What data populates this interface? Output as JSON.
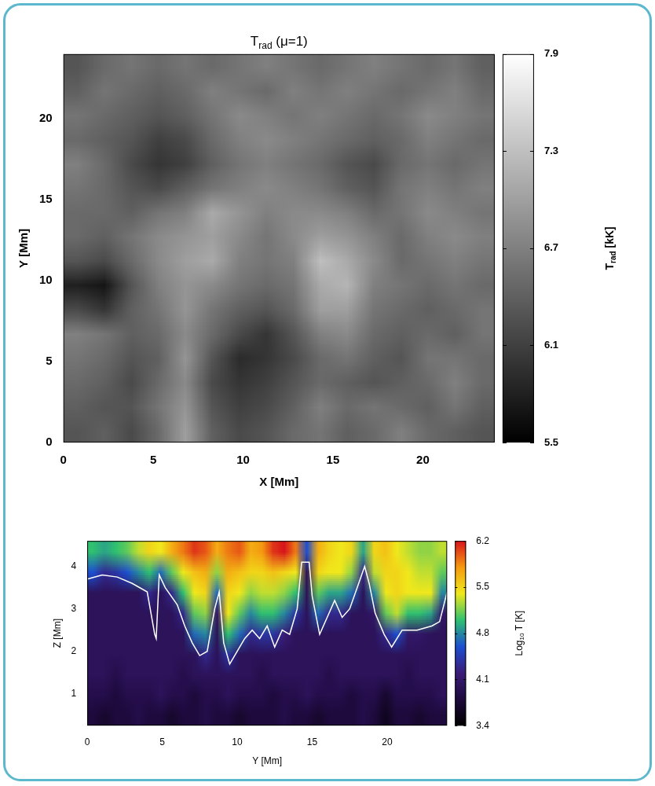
{
  "chart_data": [
    {
      "type": "heatmap",
      "title": {
        "text": "T",
        "subscript": "rad",
        "after": " (μ=1)"
      },
      "x_label": "X [Mm]",
      "y_label": "Y [Mm]",
      "xlim": [
        0,
        24
      ],
      "xticks": [
        0,
        5,
        10,
        15,
        20
      ],
      "ylim": [
        0,
        24
      ],
      "yticks": [
        0,
        5,
        10,
        15,
        20
      ],
      "cells": [
        [
          6.3,
          6.4,
          6.2,
          6.5,
          7.0,
          6.4,
          6.2,
          6.3,
          6.5,
          6.6,
          6.4,
          6.5,
          6.7,
          6.5,
          6.4,
          6.3
        ],
        [
          6.4,
          6.3,
          6.3,
          6.6,
          6.9,
          6.3,
          6.1,
          6.2,
          6.4,
          6.7,
          6.5,
          6.6,
          6.5,
          6.4,
          6.6,
          6.4
        ],
        [
          6.5,
          6.4,
          6.2,
          6.5,
          6.8,
          6.2,
          6.0,
          6.1,
          6.3,
          6.5,
          6.4,
          6.3,
          6.4,
          6.5,
          6.7,
          6.5
        ],
        [
          6.6,
          6.5,
          6.3,
          6.4,
          6.9,
          6.3,
          5.9,
          6.0,
          6.2,
          6.5,
          6.6,
          6.4,
          6.3,
          6.6,
          6.6,
          6.5
        ],
        [
          6.7,
          6.6,
          6.4,
          6.5,
          6.8,
          6.5,
          6.2,
          6.0,
          6.3,
          6.7,
          6.8,
          6.5,
          6.4,
          6.5,
          6.4,
          6.6
        ],
        [
          6.2,
          6.0,
          6.4,
          6.6,
          6.9,
          6.6,
          6.4,
          6.3,
          6.5,
          7.0,
          7.0,
          6.6,
          6.5,
          6.4,
          6.5,
          6.6
        ],
        [
          5.8,
          5.7,
          6.3,
          6.7,
          6.9,
          6.8,
          6.6,
          6.5,
          6.6,
          7.1,
          7.2,
          6.7,
          6.6,
          6.5,
          6.6,
          6.5
        ],
        [
          6.3,
          6.2,
          6.5,
          6.8,
          7.0,
          7.1,
          6.7,
          6.6,
          6.7,
          7.3,
          7.1,
          6.8,
          6.5,
          6.6,
          6.7,
          6.6
        ],
        [
          6.5,
          6.4,
          6.6,
          6.8,
          6.9,
          7.0,
          6.8,
          6.6,
          6.8,
          7.0,
          6.9,
          6.7,
          6.5,
          6.7,
          6.8,
          6.7
        ],
        [
          6.5,
          6.5,
          6.4,
          6.6,
          6.7,
          7.1,
          6.9,
          6.7,
          6.8,
          6.8,
          6.7,
          6.5,
          6.6,
          6.8,
          6.7,
          6.6
        ],
        [
          6.6,
          6.5,
          6.3,
          6.2,
          6.4,
          6.6,
          6.7,
          6.8,
          6.7,
          6.6,
          6.4,
          6.3,
          6.6,
          6.7,
          6.6,
          6.7
        ],
        [
          6.7,
          6.5,
          6.2,
          6.0,
          6.1,
          6.4,
          6.6,
          6.7,
          6.6,
          6.5,
          6.3,
          6.2,
          6.5,
          6.6,
          6.5,
          6.6
        ],
        [
          6.5,
          6.4,
          6.3,
          6.1,
          6.2,
          6.5,
          6.7,
          6.8,
          6.7,
          6.6,
          6.5,
          6.4,
          6.5,
          6.7,
          6.6,
          6.5
        ],
        [
          6.6,
          6.5,
          6.4,
          6.3,
          6.4,
          6.6,
          6.8,
          6.7,
          6.6,
          6.7,
          6.6,
          6.5,
          6.6,
          6.8,
          6.7,
          6.6
        ],
        [
          6.4,
          6.6,
          6.5,
          6.4,
          6.5,
          6.7,
          6.6,
          6.5,
          6.7,
          6.6,
          6.7,
          6.6,
          6.5,
          6.6,
          6.7,
          6.5
        ],
        [
          6.3,
          6.5,
          6.6,
          6.5,
          6.6,
          6.5,
          6.6,
          6.7,
          6.6,
          6.5,
          6.6,
          6.7,
          6.6,
          6.5,
          6.6,
          6.4
        ]
      ],
      "colorbar": {
        "label": {
          "text": "T",
          "subscript": "rad",
          "after": " [kK]"
        },
        "lim": [
          5.5,
          7.9
        ],
        "ticks": [
          5.5,
          6.1,
          6.7,
          7.3,
          7.9
        ],
        "colors": [
          "#000000",
          "#ffffff"
        ]
      }
    },
    {
      "type": "heatmap",
      "x_label": "Y [Mm]",
      "y_label": "Z [Mm]",
      "xlim": [
        0,
        24
      ],
      "xticks": [
        0,
        5,
        10,
        15,
        20
      ],
      "ylim": [
        0.25,
        4.6
      ],
      "yticks": [
        1,
        2,
        3,
        4
      ],
      "cells": [
        [
          3.8,
          3.7,
          3.8,
          3.8,
          3.9,
          3.8,
          3.8,
          3.7,
          3.8,
          3.8,
          3.9,
          3.8,
          3.8,
          3.7,
          3.8,
          3.8,
          3.8,
          3.9,
          3.8,
          3.8,
          3.7,
          3.8,
          3.8,
          3.8,
          3.9,
          3.8,
          3.6,
          3.8,
          3.8,
          3.7,
          3.8,
          3.8
        ],
        [
          3.9,
          3.9,
          3.8,
          3.9,
          3.9,
          3.9,
          4.0,
          3.9,
          3.9,
          3.8,
          3.9,
          3.9,
          4.0,
          3.9,
          3.9,
          3.9,
          3.8,
          3.9,
          3.9,
          4.0,
          3.9,
          3.9,
          3.9,
          3.8,
          3.9,
          3.9,
          3.7,
          3.9,
          3.9,
          3.9,
          3.9,
          4.0
        ],
        [
          4.0,
          4.0,
          3.9,
          4.0,
          4.0,
          4.0,
          4.0,
          4.0,
          3.9,
          4.0,
          4.0,
          4.0,
          4.0,
          4.0,
          4.0,
          3.9,
          4.0,
          4.0,
          4.0,
          4.0,
          4.0,
          3.9,
          4.0,
          4.0,
          4.0,
          4.0,
          4.0,
          4.0,
          3.9,
          4.0,
          4.0,
          4.0
        ],
        [
          4.0,
          4.0,
          4.0,
          4.0,
          4.0,
          4.0,
          4.0,
          4.0,
          4.0,
          4.0,
          4.3,
          4.0,
          4.4,
          4.0,
          4.0,
          4.0,
          4.0,
          4.0,
          4.0,
          4.0,
          4.0,
          4.0,
          4.0,
          4.0,
          4.0,
          4.0,
          4.0,
          4.0,
          4.0,
          4.0,
          4.0,
          4.0
        ],
        [
          4.0,
          4.0,
          4.0,
          4.0,
          4.0,
          4.0,
          4.0,
          4.0,
          4.0,
          4.7,
          4.8,
          4.0,
          5.0,
          4.7,
          4.3,
          4.4,
          4.4,
          4.2,
          4.0,
          4.0,
          4.0,
          4.0,
          4.0,
          4.0,
          4.0,
          4.0,
          4.3,
          4.6,
          4.1,
          4.1,
          4.0,
          4.0
        ],
        [
          4.0,
          4.0,
          4.0,
          4.0,
          4.0,
          4.0,
          4.0,
          4.0,
          4.3,
          5.1,
          5.2,
          4.1,
          5.4,
          5.1,
          4.8,
          5.0,
          5.0,
          4.8,
          4.4,
          4.0,
          4.7,
          4.3,
          4.3,
          4.0,
          4.0,
          4.1,
          5.1,
          5.3,
          5.0,
          5.0,
          4.9,
          4.1
        ],
        [
          4.0,
          4.0,
          4.0,
          4.0,
          4.0,
          4.3,
          4.0,
          4.3,
          5.0,
          5.4,
          5.5,
          4.7,
          5.5,
          5.4,
          5.2,
          5.3,
          5.3,
          5.2,
          5.0,
          4.0,
          5.1,
          4.9,
          4.9,
          4.7,
          4.0,
          4.8,
          5.4,
          5.5,
          5.4,
          5.4,
          5.4,
          4.8
        ],
        [
          4.6,
          4.3,
          4.4,
          4.6,
          4.8,
          5.0,
          4.7,
          5.1,
          5.4,
          5.6,
          5.7,
          5.2,
          5.7,
          5.6,
          5.5,
          5.5,
          5.6,
          5.5,
          5.4,
          4.0,
          5.5,
          5.4,
          5.4,
          5.2,
          4.3,
          5.3,
          5.5,
          5.5,
          5.4,
          5.3,
          5.3,
          5.1
        ],
        [
          5.0,
          4.9,
          5.0,
          5.1,
          5.3,
          5.5,
          5.4,
          5.7,
          5.9,
          6.1,
          6.0,
          5.7,
          5.9,
          6.0,
          5.7,
          5.8,
          6.1,
          6.2,
          5.9,
          4.6,
          5.7,
          5.5,
          5.4,
          5.5,
          4.9,
          5.5,
          5.6,
          5.4,
          5.3,
          5.2,
          5.2,
          5.3
        ]
      ],
      "contour": {
        "color": "#ffffff",
        "x": [
          0,
          1,
          2,
          3,
          4,
          4.5,
          4.6,
          4.8,
          5.2,
          6,
          6.5,
          7,
          7.5,
          8,
          8.5,
          8.8,
          9.1,
          9.5,
          10,
          10.5,
          11,
          11.5,
          12,
          12.5,
          13,
          13.5,
          14,
          14.3,
          14.8,
          15,
          15.5,
          16,
          16.5,
          17,
          17.5,
          18,
          18.5,
          18.8,
          19.2,
          19.8,
          20.3,
          21,
          22,
          23,
          23.5,
          24
        ],
        "y": [
          3.7,
          3.8,
          3.75,
          3.6,
          3.4,
          2.4,
          2.3,
          3.8,
          3.5,
          3.1,
          2.6,
          2.2,
          1.9,
          2.0,
          3.0,
          3.4,
          2.2,
          1.7,
          2.0,
          2.3,
          2.5,
          2.3,
          2.6,
          2.1,
          2.5,
          2.4,
          3.0,
          4.1,
          4.1,
          3.3,
          2.4,
          2.8,
          3.2,
          2.8,
          3.0,
          3.5,
          4.0,
          3.6,
          2.9,
          2.4,
          2.1,
          2.5,
          2.5,
          2.6,
          2.7,
          3.4
        ]
      },
      "colorbar": {
        "label": {
          "text": "Log",
          "subscript": "10",
          "after": " T [K]"
        },
        "lim": [
          3.4,
          6.2
        ],
        "ticks": [
          3.4,
          4.1,
          4.8,
          5.5,
          6.2
        ],
        "colors": [
          "#000000",
          "#1e0a3c",
          "#3a1c78",
          "#1d4fd0",
          "#2fc070",
          "#f0e81c",
          "#f59a10",
          "#d8141c"
        ]
      }
    }
  ]
}
